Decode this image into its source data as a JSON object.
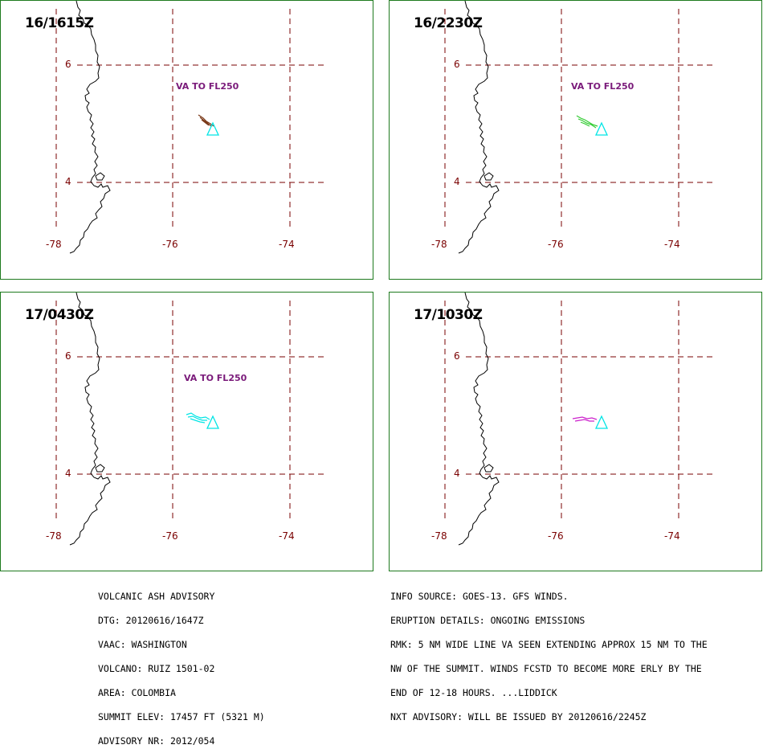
{
  "colors": {
    "border": "#1e7a1e",
    "grid": "#7a0000",
    "coast": "#000000",
    "volcano": "#00e5e5",
    "va_label": "#7a1a7a"
  },
  "grid_labels": {
    "lat": [
      "6",
      "4"
    ],
    "lon": [
      "-78",
      "-76",
      "-74"
    ]
  },
  "panels": [
    {
      "time": "16/1615Z",
      "va_label": "VA TO FL250",
      "ash_color": "#7a3a1a"
    },
    {
      "time": "16/2230Z",
      "va_label": "VA TO FL250",
      "ash_color": "#33cc33"
    },
    {
      "time": "17/0430Z",
      "va_label": "VA TO FL250",
      "ash_color": "#00e5e5"
    },
    {
      "time": "17/1030Z",
      "va_label": "",
      "ash_color": "#cc22cc"
    }
  ],
  "advisory_left": [
    "VOLCANIC ASH ADVISORY",
    "DTG: 20120616/1647Z",
    "VAAC: WASHINGTON",
    "VOLCANO: RUIZ 1501-02",
    "AREA: COLOMBIA",
    "SUMMIT ELEV: 17457 FT (5321 M)",
    "ADVISORY NR: 2012/054"
  ],
  "advisory_right": [
    "INFO SOURCE: GOES-13. GFS WINDS.",
    "ERUPTION DETAILS: ONGOING EMISSIONS",
    "RMK: 5 NM WIDE LINE VA SEEN EXTENDING APPROX 15 NM TO THE",
    "NW OF THE SUMMIT. WINDS FCSTD TO BECOME MORE ERLY BY THE",
    "END OF 12-18 HOURS. ...LIDDICK",
    "NXT ADVISORY: WILL BE ISSUED BY 20120616/2245Z"
  ]
}
